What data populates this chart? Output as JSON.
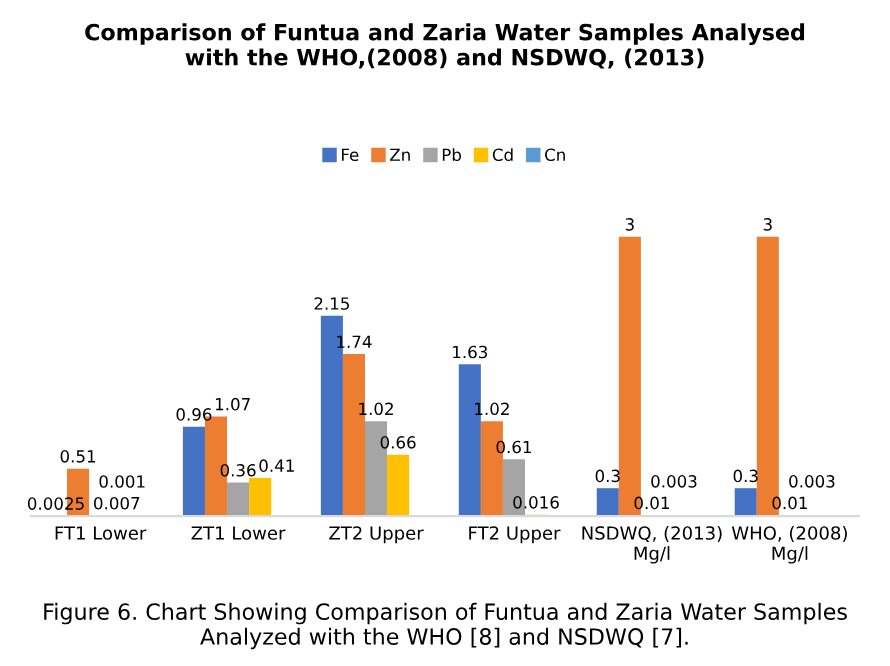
{
  "chart_data": {
    "type": "bar",
    "title": "Comparison of Funtua and Zaria Water Samples Analysed\nwith the WHO,(2008) and NSDWQ, (2013)",
    "categories": [
      "FT1 Lower",
      "ZT1 Lower",
      "ZT2 Upper",
      "FT2 Upper",
      "NSDWQ, (2013)\nMg/l",
      "WHO, (2008)\nMg/l"
    ],
    "series": [
      {
        "name": "Fe",
        "color": "#4472c4",
        "values": [
          0.0025,
          0.96,
          2.15,
          1.63,
          0.3,
          0.3
        ]
      },
      {
        "name": "Zn",
        "color": "#ed7d31",
        "values": [
          0.51,
          1.07,
          1.74,
          1.02,
          3,
          3
        ]
      },
      {
        "name": "Pb",
        "color": "#a5a5a5",
        "values": [
          0.007,
          0.36,
          1.02,
          0.61,
          0.01,
          0.01
        ]
      },
      {
        "name": "Cd",
        "color": "#ffc000",
        "values": [
          0.001,
          0.41,
          0.66,
          0.016,
          0.003,
          0.003
        ]
      },
      {
        "name": "Cn",
        "color": "#5b9bd5",
        "values": [
          null,
          null,
          null,
          null,
          null,
          null
        ]
      }
    ],
    "data_labels": true,
    "legend": "top",
    "grid": false,
    "annotations": [
      "Figure 6. Chart Showing Comparison of Funtua and Zaria Water Samples Analyzed with the WHO [8] and NSDWQ [7]."
    ]
  }
}
